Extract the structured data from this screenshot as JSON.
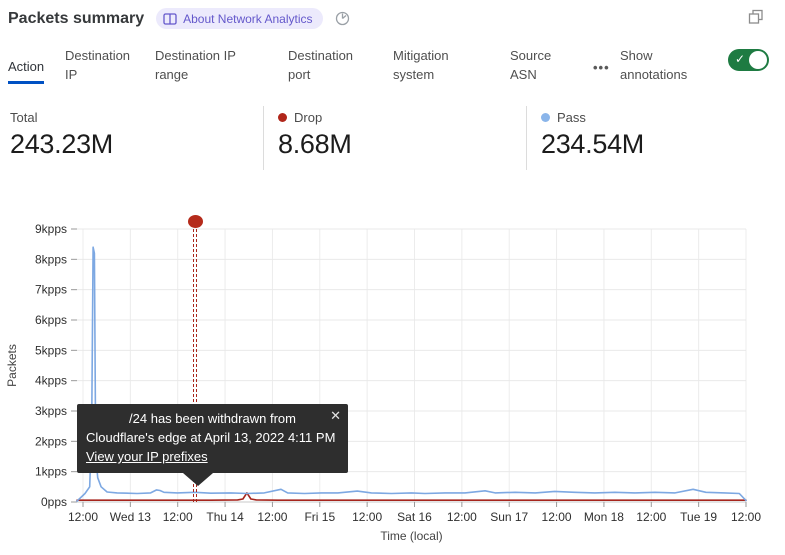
{
  "header": {
    "title": "Packets summary",
    "badge_label": "About Network Analytics",
    "icons": {
      "badge": "book-icon",
      "history": "pie-clock-icon",
      "window": "restore-window-icon",
      "toggle": "check-icon",
      "tooltip_close": "close-icon"
    }
  },
  "tabs": {
    "items": [
      {
        "label": "Action",
        "active": true
      },
      {
        "label": "Destination IP",
        "active": false
      },
      {
        "label": "Destination IP range",
        "active": false
      },
      {
        "label": "Destination port",
        "active": false
      },
      {
        "label": "Mitigation system",
        "active": false
      },
      {
        "label": "Source ASN",
        "active": false
      }
    ],
    "more_label": "•••",
    "annotations_label": "Show annotations",
    "annotations_toggle_on": true,
    "active_underline_color": "#0051c3",
    "toggle_color": "#1e7b42"
  },
  "stats": [
    {
      "label": "Total",
      "value": "243.23M",
      "dot_color": ""
    },
    {
      "label": "Drop",
      "value": "8.68M",
      "dot_color": "#b0261a"
    },
    {
      "label": "Pass",
      "value": "234.54M",
      "dot_color": "#8ab5ea"
    }
  ],
  "tooltip": {
    "line1": "/24 has been withdrawn from",
    "line2": "Cloudflare's edge at April 13, 2022 4:11 PM",
    "link_label": "View your IP prefixes",
    "close_glyph": "✕",
    "bg_color": "#2e2e2e"
  },
  "chart_data": {
    "type": "line",
    "title": "",
    "xlabel": "Time (local)",
    "ylabel": "Packets",
    "x_ticks": [
      "12:00",
      "Wed 13",
      "12:00",
      "Thu 14",
      "12:00",
      "Fri 15",
      "12:00",
      "Sat 16",
      "12:00",
      "Sun 17",
      "12:00",
      "Mon 18",
      "12:00",
      "Tue 19",
      "12:00"
    ],
    "y_ticks": [
      "0pps",
      "1kpps",
      "2kpps",
      "3kpps",
      "4kpps",
      "5kpps",
      "6kpps",
      "7kpps",
      "8kpps",
      "9kpps"
    ],
    "ylim": [
      0,
      9
    ],
    "y_unit": "kpps",
    "grid": true,
    "legend_position": "top-stats-row",
    "series": [
      {
        "name": "Drop",
        "color": "#a6251d",
        "points": [
          [
            0.0,
            0.06
          ],
          [
            0.1,
            0.06
          ],
          [
            0.2,
            0.06
          ],
          [
            0.24,
            0.07
          ],
          [
            0.248,
            0.1
          ],
          [
            0.254,
            0.3
          ],
          [
            0.26,
            0.1
          ],
          [
            0.268,
            0.07
          ],
          [
            0.3,
            0.06
          ],
          [
            0.4,
            0.06
          ],
          [
            0.5,
            0.06
          ],
          [
            0.6,
            0.06
          ],
          [
            0.7,
            0.06
          ],
          [
            0.8,
            0.06
          ],
          [
            0.9,
            0.06
          ],
          [
            1.0,
            0.06
          ]
        ]
      },
      {
        "name": "Pass",
        "color": "#7da8e2",
        "points": [
          [
            0.0,
            0.03
          ],
          [
            0.012,
            0.28
          ],
          [
            0.019,
            0.5
          ],
          [
            0.022,
            2.5
          ],
          [
            0.024,
            8.4
          ],
          [
            0.026,
            8.2
          ],
          [
            0.028,
            1.6
          ],
          [
            0.031,
            0.8
          ],
          [
            0.036,
            0.5
          ],
          [
            0.045,
            0.33
          ],
          [
            0.06,
            0.3
          ],
          [
            0.09,
            0.28
          ],
          [
            0.11,
            0.3
          ],
          [
            0.119,
            0.4
          ],
          [
            0.124,
            0.38
          ],
          [
            0.13,
            0.32
          ],
          [
            0.15,
            0.3
          ],
          [
            0.176,
            0.32
          ],
          [
            0.2,
            0.29
          ],
          [
            0.23,
            0.3
          ],
          [
            0.255,
            0.28
          ],
          [
            0.28,
            0.3
          ],
          [
            0.305,
            0.42
          ],
          [
            0.315,
            0.3
          ],
          [
            0.34,
            0.28
          ],
          [
            0.365,
            0.3
          ],
          [
            0.39,
            0.3
          ],
          [
            0.419,
            0.36
          ],
          [
            0.44,
            0.3
          ],
          [
            0.47,
            0.28
          ],
          [
            0.5,
            0.3
          ],
          [
            0.52,
            0.28
          ],
          [
            0.55,
            0.3
          ],
          [
            0.58,
            0.3
          ],
          [
            0.61,
            0.37
          ],
          [
            0.625,
            0.3
          ],
          [
            0.655,
            0.32
          ],
          [
            0.685,
            0.3
          ],
          [
            0.714,
            0.35
          ],
          [
            0.744,
            0.32
          ],
          [
            0.774,
            0.3
          ],
          [
            0.804,
            0.32
          ],
          [
            0.834,
            0.3
          ],
          [
            0.864,
            0.32
          ],
          [
            0.894,
            0.3
          ],
          [
            0.921,
            0.42
          ],
          [
            0.94,
            0.32
          ],
          [
            0.968,
            0.3
          ],
          [
            0.99,
            0.28
          ],
          [
            0.997,
            0.12
          ],
          [
            1.0,
            0.05
          ]
        ]
      }
    ],
    "annotation": {
      "x_frac": 0.1764,
      "marker": "circle",
      "marker_color": "#b52b1b",
      "line_style": "double-dashed",
      "line_color": "#a8261b",
      "label": "/24 has been withdrawn from Cloudflare's edge at April 13, 2022 4:11 PM"
    }
  }
}
